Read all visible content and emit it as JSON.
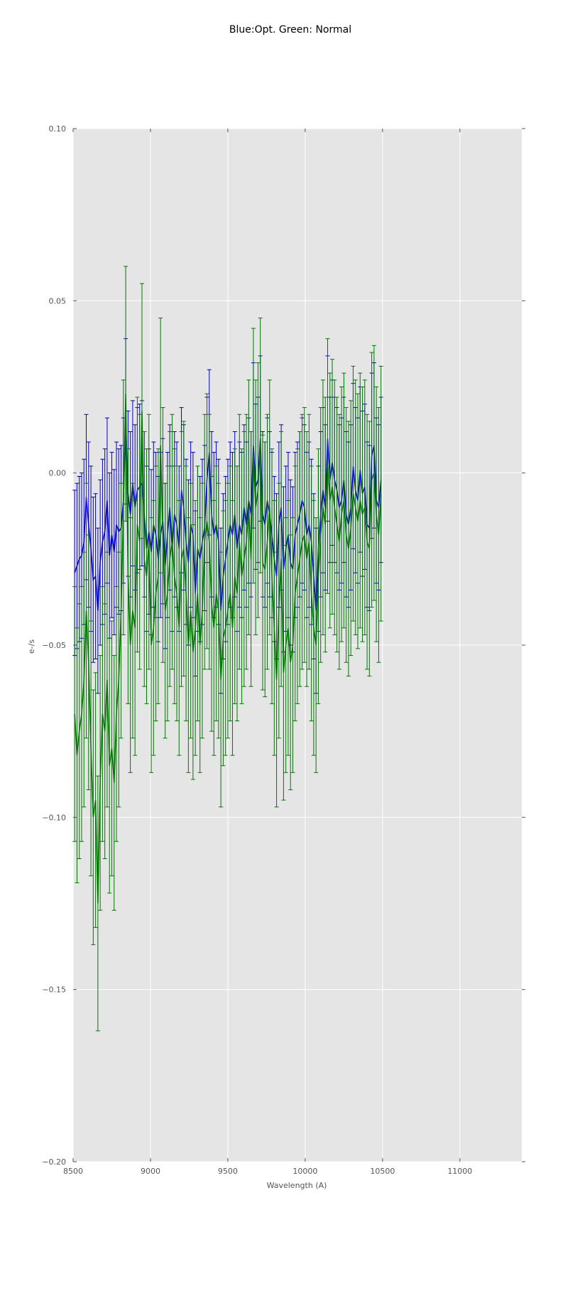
{
  "chart_data": {
    "type": "line",
    "title": "Blue:Opt. Green: Normal",
    "xlabel": "Wavelength (A)",
    "ylabel": "e-/s",
    "xlim": [
      8500,
      11400
    ],
    "ylim": [
      -0.2,
      0.1
    ],
    "xticks": [
      8500,
      9000,
      9500,
      10000,
      10500,
      11000
    ],
    "yticks": [
      -0.2,
      -0.15,
      -0.1,
      -0.05,
      0.0,
      0.05,
      0.1
    ],
    "xtick_labels": [
      "8500",
      "9000",
      "9500",
      "10000",
      "10500",
      "11000"
    ],
    "ytick_labels": [
      "−0.20",
      "−0.15",
      "−0.10",
      "−0.05",
      "0.00",
      "0.05",
      "0.10"
    ],
    "grid": true,
    "background": "#e5e5e5",
    "error_bars": true,
    "series": [
      {
        "color": "#0000cc",
        "x_start": 8510,
        "x_step": 15,
        "y": [
          -0.029,
          -0.027,
          -0.025,
          -0.024,
          -0.02,
          -0.007,
          -0.015,
          -0.022,
          -0.031,
          -0.03,
          -0.04,
          -0.026,
          -0.02,
          -0.017,
          -0.008,
          -0.024,
          -0.018,
          -0.023,
          -0.015,
          -0.017,
          -0.016,
          -0.008,
          0.015,
          -0.006,
          -0.012,
          -0.003,
          -0.01,
          -0.005,
          -0.004,
          -0.003,
          -0.012,
          -0.022,
          -0.017,
          -0.023,
          -0.015,
          -0.018,
          -0.025,
          -0.018,
          -0.014,
          -0.027,
          -0.018,
          -0.01,
          -0.022,
          -0.012,
          -0.015,
          -0.022,
          -0.005,
          -0.01,
          -0.02,
          -0.026,
          -0.015,
          -0.018,
          -0.035,
          -0.022,
          -0.025,
          -0.02,
          -0.016,
          -0.002,
          0.006,
          -0.012,
          -0.018,
          -0.015,
          -0.02,
          -0.04,
          -0.03,
          -0.025,
          -0.02,
          -0.015,
          -0.018,
          -0.012,
          -0.022,
          -0.015,
          -0.018,
          -0.01,
          -0.015,
          -0.008,
          -0.012,
          0.008,
          -0.004,
          -0.002,
          0.01,
          -0.012,
          -0.015,
          -0.008,
          -0.012,
          -0.018,
          -0.025,
          -0.03,
          -0.015,
          -0.01,
          -0.028,
          -0.022,
          -0.018,
          -0.026,
          -0.028,
          -0.018,
          -0.015,
          -0.012,
          -0.008,
          -0.01,
          -0.018,
          -0.015,
          -0.02,
          -0.03,
          -0.04,
          -0.022,
          -0.012,
          -0.005,
          -0.01,
          0.01,
          -0.002,
          0.003,
          -0.002,
          -0.005,
          -0.01,
          -0.008,
          -0.002,
          -0.012,
          -0.015,
          -0.01,
          0.002,
          -0.005,
          -0.008,
          0.001,
          -0.006,
          -0.004,
          -0.015,
          -0.016,
          0.005,
          0.008,
          -0.008,
          -0.01,
          -0.002
        ],
        "yerr": 0.024
      },
      {
        "color": "#007700",
        "x_start": 8510,
        "x_step": 15,
        "y": [
          -0.07,
          -0.082,
          -0.075,
          -0.07,
          -0.06,
          -0.04,
          -0.055,
          -0.08,
          -0.1,
          -0.095,
          -0.125,
          -0.09,
          -0.07,
          -0.075,
          -0.06,
          -0.085,
          -0.08,
          -0.09,
          -0.07,
          -0.06,
          -0.04,
          -0.01,
          0.023,
          -0.03,
          -0.05,
          -0.04,
          -0.045,
          -0.015,
          -0.02,
          0.018,
          -0.025,
          -0.03,
          -0.02,
          -0.05,
          -0.045,
          -0.035,
          -0.03,
          0.008,
          -0.018,
          -0.04,
          -0.035,
          -0.025,
          -0.02,
          -0.03,
          -0.035,
          -0.045,
          -0.025,
          -0.022,
          -0.035,
          -0.05,
          -0.04,
          -0.052,
          -0.045,
          -0.035,
          -0.05,
          -0.04,
          -0.02,
          -0.014,
          -0.02,
          -0.038,
          -0.045,
          -0.035,
          -0.04,
          -0.06,
          -0.048,
          -0.045,
          -0.04,
          -0.035,
          -0.045,
          -0.03,
          -0.035,
          -0.02,
          -0.03,
          -0.025,
          -0.02,
          -0.01,
          -0.025,
          0.005,
          -0.01,
          -0.005,
          0.008,
          -0.026,
          -0.028,
          -0.02,
          -0.01,
          -0.03,
          -0.045,
          -0.06,
          -0.04,
          -0.025,
          -0.058,
          -0.05,
          -0.045,
          -0.055,
          -0.05,
          -0.035,
          -0.03,
          -0.025,
          -0.02,
          -0.018,
          -0.025,
          -0.02,
          -0.035,
          -0.045,
          -0.05,
          -0.03,
          -0.018,
          -0.01,
          -0.015,
          0.002,
          -0.008,
          -0.004,
          -0.01,
          -0.015,
          -0.02,
          -0.012,
          -0.008,
          -0.018,
          -0.022,
          -0.016,
          -0.006,
          -0.01,
          -0.014,
          -0.008,
          -0.012,
          -0.01,
          -0.02,
          -0.022,
          -0.002,
          0.0,
          -0.012,
          -0.018,
          -0.006
        ],
        "yerr": 0.037
      }
    ]
  }
}
